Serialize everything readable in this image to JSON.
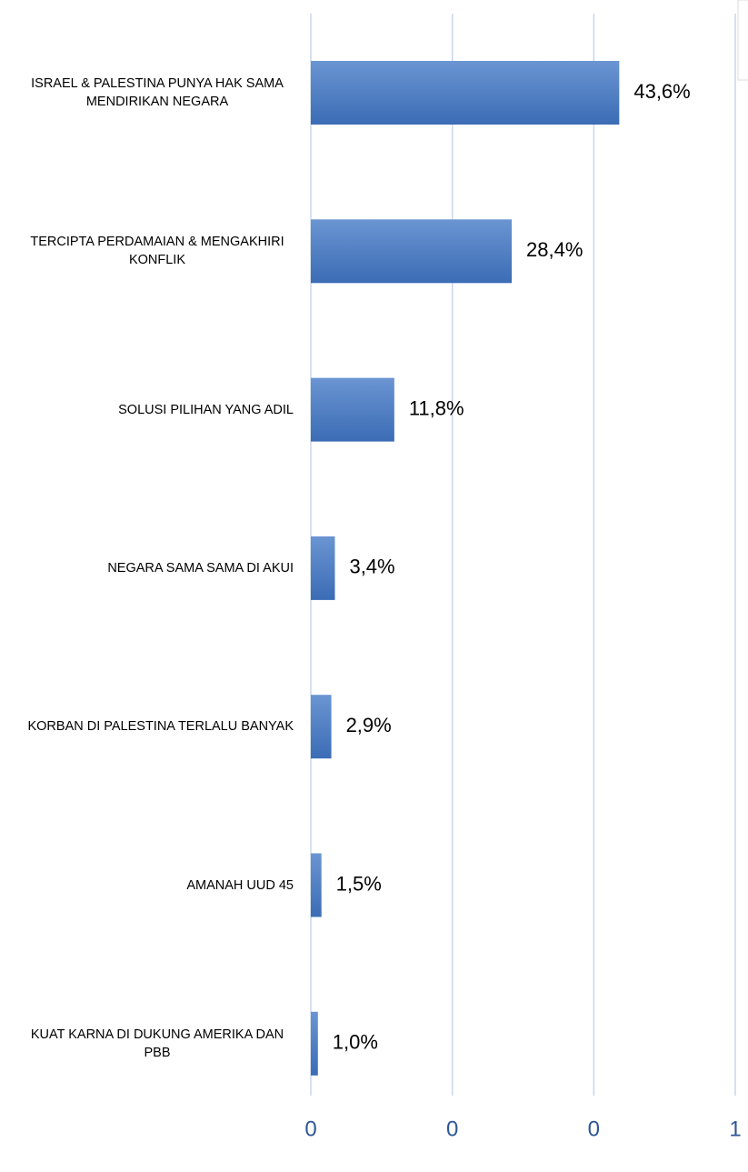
{
  "chart_data": {
    "type": "bar",
    "orientation": "horizontal",
    "categories": [
      "ISRAEL & PALESTINA PUNYA HAK SAMA MENDIRIKAN NEGARA",
      "TERCIPTA PERDAMAIAN & MENGAKHIRI KONFLIK",
      "SOLUSI PILIHAN YANG ADIL",
      "NEGARA SAMA SAMA DI AKUI",
      "KORBAN DI PALESTINA TERLALU BANYAK",
      "AMANAH UUD 45",
      "KUAT KARNA DI DUKUNG AMERIKA DAN PBB"
    ],
    "values": [
      0.436,
      0.284,
      0.118,
      0.034,
      0.029,
      0.015,
      0.01
    ],
    "value_labels": [
      "43,6%",
      "28,4%",
      "11,8%",
      "3,4%",
      "2,9%",
      "1,5%",
      "1,0%"
    ],
    "color": "#4a7bc4",
    "xlim": [
      0,
      0.6
    ],
    "xticks": [
      0,
      {
        "value": 0.2,
        "label": "0"
      },
      {
        "value": 0.4,
        "label": "0"
      },
      {
        "value": 0.6,
        "label": "1"
      }
    ],
    "grid": true
  }
}
